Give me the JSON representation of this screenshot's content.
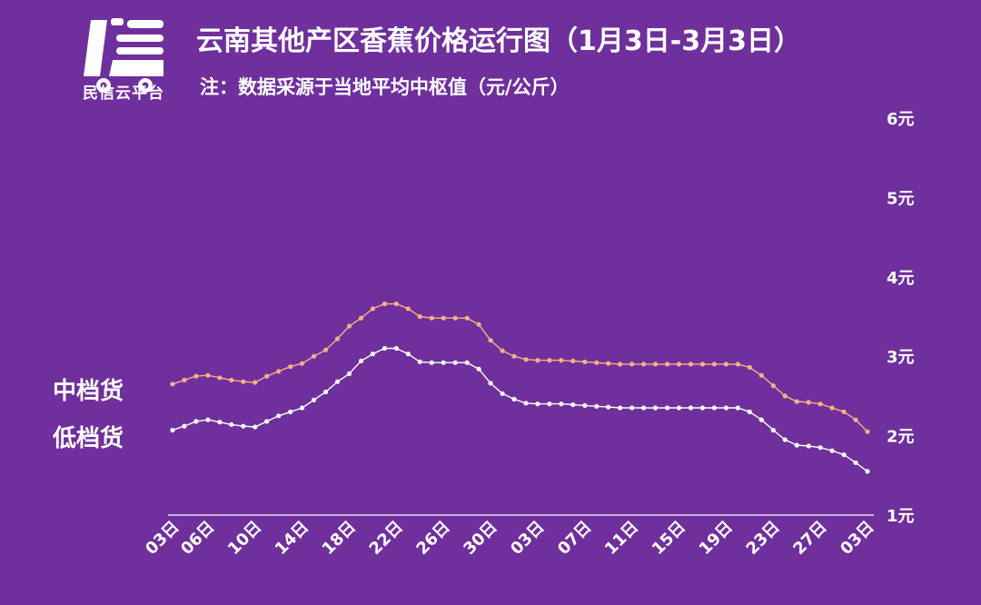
{
  "header": {
    "title": "云南其他产区香蕉价格运行图（1月3日-3月3日）",
    "subtitle": "注：数据采源于当地平均中枢值（元/公斤）",
    "logo_text": "民信云平台"
  },
  "colors": {
    "background": "#6f2f9c",
    "mid_series": "#f4b183",
    "low_series": "#ffffff",
    "text": "#ffffff"
  },
  "chart_data": {
    "type": "line",
    "ylim": [
      1,
      6
    ],
    "y_ticks": [
      {
        "value": 6,
        "label": "6元"
      },
      {
        "value": 5,
        "label": "5元"
      },
      {
        "value": 4,
        "label": "4元"
      },
      {
        "value": 3,
        "label": "3元"
      },
      {
        "value": 2,
        "label": "2元"
      },
      {
        "value": 1,
        "label": "1元"
      }
    ],
    "x_tick_labels": [
      {
        "index": 0,
        "label": "03日"
      },
      {
        "index": 3,
        "label": "06日"
      },
      {
        "index": 7,
        "label": "10日"
      },
      {
        "index": 11,
        "label": "14日"
      },
      {
        "index": 15,
        "label": "18日"
      },
      {
        "index": 19,
        "label": "22日"
      },
      {
        "index": 23,
        "label": "26日"
      },
      {
        "index": 27,
        "label": "30日"
      },
      {
        "index": 31,
        "label": "03日"
      },
      {
        "index": 35,
        "label": "07日"
      },
      {
        "index": 39,
        "label": "11日"
      },
      {
        "index": 43,
        "label": "15日"
      },
      {
        "index": 47,
        "label": "19日"
      },
      {
        "index": 51,
        "label": "23日"
      },
      {
        "index": 55,
        "label": "27日"
      },
      {
        "index": 59,
        "label": "03日"
      }
    ],
    "series": [
      {
        "name": "中档货",
        "values": [
          2.65,
          2.7,
          2.75,
          2.76,
          2.73,
          2.7,
          2.68,
          2.67,
          2.75,
          2.81,
          2.87,
          2.91,
          3.0,
          3.08,
          3.22,
          3.38,
          3.48,
          3.6,
          3.66,
          3.66,
          3.6,
          3.5,
          3.48,
          3.48,
          3.48,
          3.48,
          3.4,
          3.2,
          3.07,
          3.0,
          2.96,
          2.95,
          2.95,
          2.95,
          2.94,
          2.93,
          2.92,
          2.91,
          2.9,
          2.9,
          2.9,
          2.9,
          2.9,
          2.9,
          2.9,
          2.9,
          2.9,
          2.9,
          2.9,
          2.86,
          2.76,
          2.63,
          2.5,
          2.43,
          2.42,
          2.4,
          2.35,
          2.3,
          2.2,
          2.05
        ]
      },
      {
        "name": "低档货",
        "values": [
          2.07,
          2.12,
          2.18,
          2.2,
          2.17,
          2.14,
          2.12,
          2.11,
          2.18,
          2.25,
          2.3,
          2.35,
          2.45,
          2.55,
          2.68,
          2.78,
          2.94,
          3.03,
          3.1,
          3.1,
          3.03,
          2.93,
          2.92,
          2.92,
          2.92,
          2.92,
          2.84,
          2.66,
          2.53,
          2.46,
          2.41,
          2.4,
          2.4,
          2.4,
          2.39,
          2.38,
          2.37,
          2.36,
          2.35,
          2.35,
          2.35,
          2.35,
          2.35,
          2.35,
          2.35,
          2.35,
          2.35,
          2.35,
          2.35,
          2.3,
          2.2,
          2.07,
          1.95,
          1.88,
          1.87,
          1.85,
          1.81,
          1.76,
          1.66,
          1.55
        ]
      }
    ]
  }
}
